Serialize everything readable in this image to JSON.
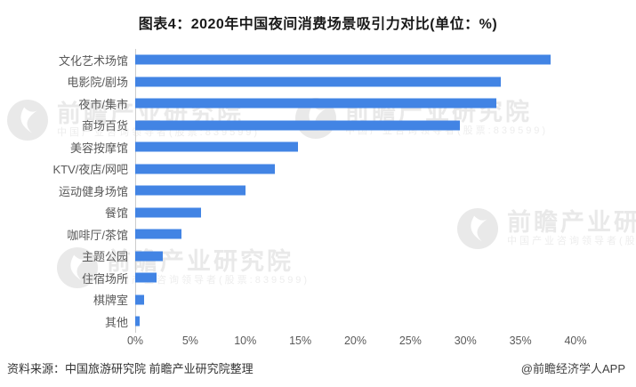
{
  "title": "图表4：2020年中国夜间消费场景吸引力对比(单位：%)",
  "chart_data": {
    "type": "bar",
    "orientation": "horizontal",
    "title": "图表4：2020年中国夜间消费场景吸引力对比(单位：%)",
    "xlabel": "",
    "ylabel": "",
    "unit": "%",
    "categories": [
      "文化艺术场馆",
      "电影院/剧场",
      "夜市/集市",
      "商场百货",
      "美容按摩馆",
      "KTV/夜店/网吧",
      "运动健身场馆",
      "餐馆",
      "咖啡厅/茶馆",
      "主题公园",
      "住宿场所",
      "棋牌室",
      "其他"
    ],
    "values": [
      37.7,
      33.2,
      32.8,
      29.5,
      14.8,
      12.7,
      10.0,
      6.0,
      4.2,
      2.5,
      1.9,
      0.8,
      0.4
    ],
    "xlim": [
      0,
      40
    ],
    "x_ticks": [
      "0%",
      "5%",
      "10%",
      "15%",
      "20%",
      "25%",
      "30%",
      "35%",
      "40%"
    ],
    "grid": "off",
    "legend": "none",
    "bar_color": "#4284e4"
  },
  "footer": {
    "source": "资料来源：中国旅游研究院 前瞻产业研究院整理",
    "credit": "@前瞻经济学人APP"
  },
  "watermark": {
    "brand": "前瞻产业研究院",
    "tagline": "中国产业咨询领导者(股票:839599)",
    "color": "#e9e9e9"
  }
}
